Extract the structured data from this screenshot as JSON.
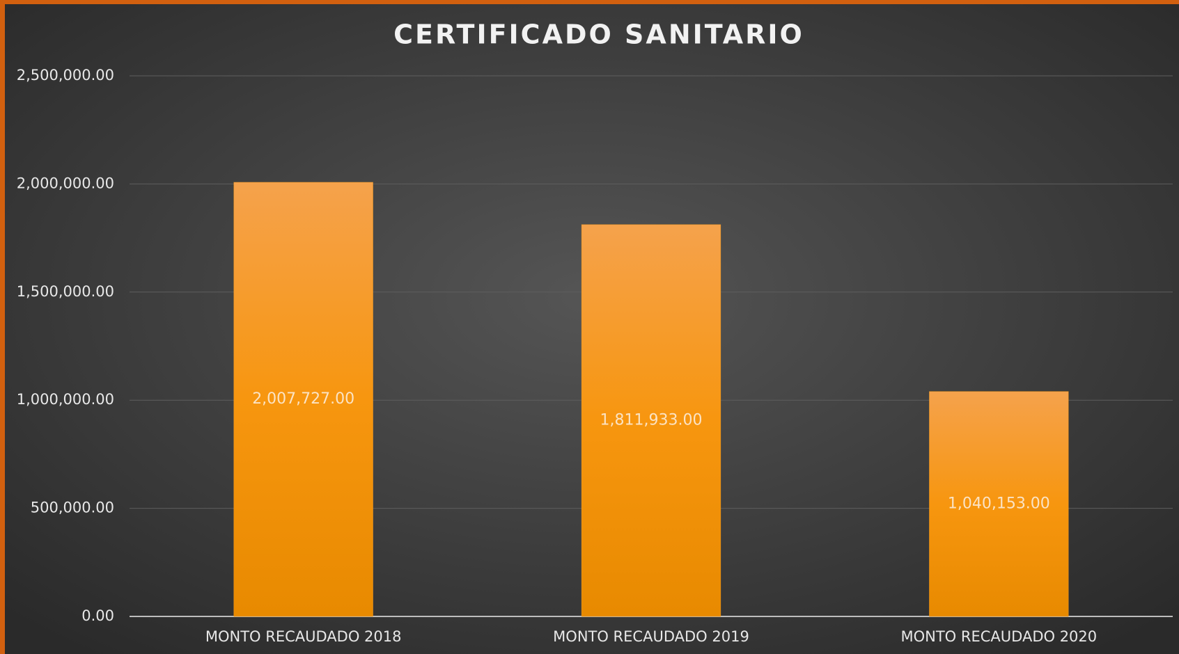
{
  "chart_data": {
    "type": "bar",
    "title": "CERTIFICADO SANITARIO",
    "categories": [
      "MONTO RECAUDADO 2018",
      "MONTO RECAUDADO 2019",
      "MONTO RECAUDADO 2020"
    ],
    "values": [
      2007727,
      1811933,
      1040153
    ],
    "value_labels": [
      "2,007,727.00",
      "1,811,933.00",
      "1,040,153.00"
    ],
    "color": "#f39a1e",
    "ylim": [
      0,
      2500000
    ],
    "yticks": [
      {
        "value": 0,
        "label": "0.00"
      },
      {
        "value": 500000,
        "label": "500,000.00"
      },
      {
        "value": 1000000,
        "label": "1,000,000.00"
      },
      {
        "value": 1500000,
        "label": "1,500,000.00"
      },
      {
        "value": 2000000,
        "label": "2,000,000.00"
      },
      {
        "value": 2500000,
        "label": "2,500,000.00"
      }
    ],
    "grid": true
  }
}
